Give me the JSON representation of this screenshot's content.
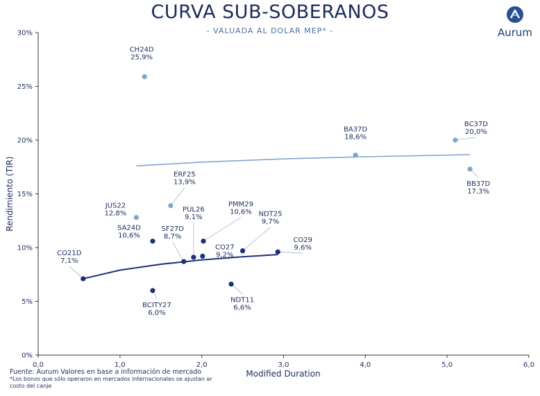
{
  "header": {
    "title": "CURVA SUB-SOBERANOS",
    "subtitle": "- VALUADA AL DOLAR MEP* -",
    "logo_text": "Aurum"
  },
  "footer": {
    "source": "Fuente: Aurum Valores en base a información de mercado",
    "note": "*Los bonos que sólo operaron en mercados internacionales se ajustan ar costo del canje"
  },
  "colors": {
    "dark": "#1b2f7a",
    "light": "#7fa6d1",
    "text": "#1b2a5e"
  },
  "chart_data": {
    "type": "scatter",
    "xlabel": "Modified Duration",
    "ylabel": "Rendimiento (TIR)",
    "xlim": [
      0,
      6
    ],
    "ylim": [
      0,
      30
    ],
    "xticks": [
      "0,0",
      "1,0",
      "2,0",
      "3,0",
      "4,0",
      "5,0",
      "6,0"
    ],
    "yticks": [
      "0%",
      "5%",
      "10%",
      "15%",
      "20%",
      "25%",
      "30%"
    ],
    "grid": false,
    "series": [
      {
        "color": "#1b2f7a",
        "points": [
          {
            "name": "CO21D",
            "label": "7,1%",
            "x": 0.55,
            "y": 7.1
          },
          {
            "name": "SA24D",
            "label": "10,6%",
            "x": 1.4,
            "y": 10.6
          },
          {
            "name": "BCITY27",
            "label": "6,0%",
            "x": 1.4,
            "y": 6.0
          },
          {
            "name": "SF27D",
            "label": "8,7%",
            "x": 1.78,
            "y": 8.7
          },
          {
            "name": "PUL26",
            "label": "9,1%",
            "x": 1.9,
            "y": 9.1
          },
          {
            "name": "PMM29",
            "label": "10,6%",
            "x": 2.02,
            "y": 10.6
          },
          {
            "name": "CO27",
            "label": "9,2%",
            "x": 2.01,
            "y": 9.2
          },
          {
            "name": "NDT11",
            "label": "6,6%",
            "x": 2.36,
            "y": 6.6
          },
          {
            "name": "NDT25",
            "label": "9,7%",
            "x": 2.5,
            "y": 9.7
          },
          {
            "name": "CO29",
            "label": "9,6%",
            "x": 2.93,
            "y": 9.6
          }
        ],
        "trend": [
          [
            0.55,
            7.1
          ],
          [
            1.0,
            7.9
          ],
          [
            1.5,
            8.45
          ],
          [
            2.0,
            8.85
          ],
          [
            2.5,
            9.15
          ],
          [
            2.93,
            9.35
          ]
        ]
      },
      {
        "color": "#7fa6d1",
        "points": [
          {
            "name": "CH24D",
            "label": "25,9%",
            "x": 1.3,
            "y": 25.9
          },
          {
            "name": "JUS22",
            "label": "12,8%",
            "x": 1.2,
            "y": 12.8
          },
          {
            "name": "ERF25",
            "label": "13,9%",
            "x": 1.62,
            "y": 13.9
          },
          {
            "name": "BA37D",
            "label": "18,6%",
            "x": 3.88,
            "y": 18.6
          },
          {
            "name": "BC37D",
            "label": "20,0%",
            "x": 5.1,
            "y": 20.0
          },
          {
            "name": "BB37D",
            "label": "17,3%",
            "x": 5.28,
            "y": 17.3
          }
        ],
        "trend": [
          [
            1.2,
            17.6
          ],
          [
            2.0,
            17.95
          ],
          [
            3.0,
            18.25
          ],
          [
            4.0,
            18.45
          ],
          [
            5.0,
            18.6
          ],
          [
            5.28,
            18.65
          ]
        ]
      }
    ]
  }
}
